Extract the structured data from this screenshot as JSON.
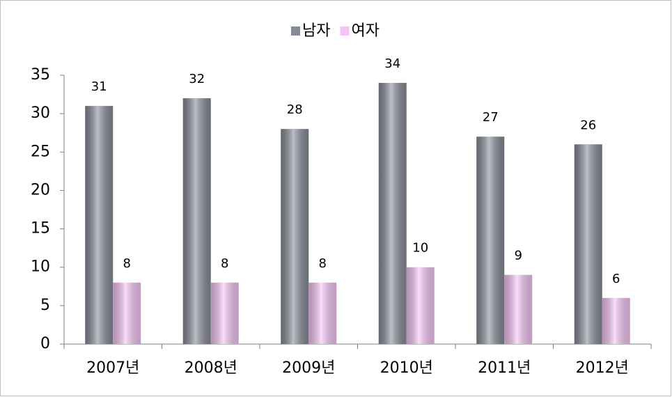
{
  "chart_data": {
    "type": "bar",
    "categories": [
      "2007년",
      "2008년",
      "2009년",
      "2010년",
      "2011년",
      "2012년"
    ],
    "series": [
      {
        "name": "남자",
        "color": "#868a96",
        "values": [
          31,
          32,
          28,
          34,
          27,
          26
        ]
      },
      {
        "name": "여자",
        "color": "#f4c4f4",
        "values": [
          8,
          8,
          8,
          10,
          9,
          6
        ]
      }
    ],
    "ylim": [
      0,
      35
    ],
    "yticks": [
      0,
      5,
      10,
      15,
      20,
      25,
      30,
      35
    ],
    "legend": "top"
  }
}
